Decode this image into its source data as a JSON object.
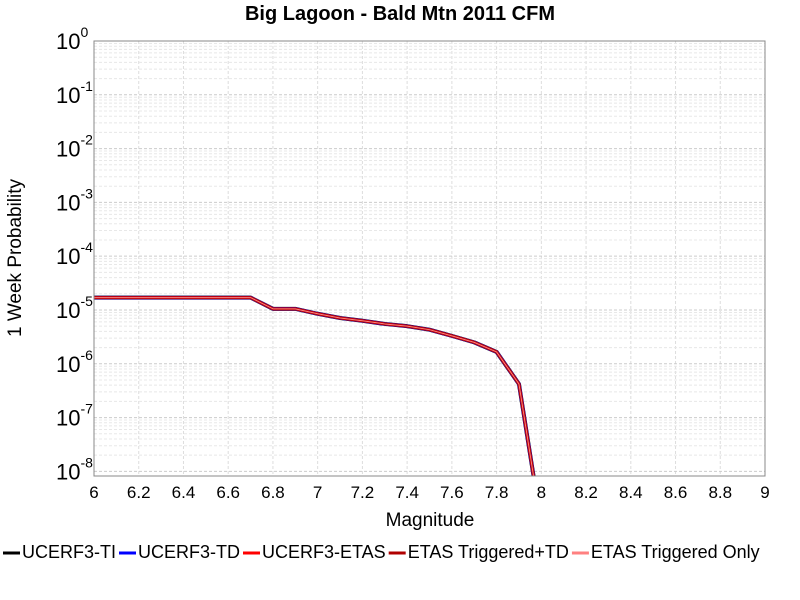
{
  "chart_data": {
    "type": "line",
    "title": "Big Lagoon - Bald Mtn 2011 CFM",
    "x_label": "Magnitude",
    "y_label": "1 Week Probability",
    "log_y": true,
    "grid": true,
    "legend": "bottom",
    "x": [
      6.0,
      6.1,
      6.2,
      6.3,
      6.4,
      6.5,
      6.6,
      6.7,
      6.8,
      6.9,
      7.0,
      7.1,
      7.2,
      7.3,
      7.4,
      7.5,
      7.6,
      7.7,
      7.8,
      7.9,
      8.0
    ],
    "series": [
      {
        "name": "UCERF3-TI",
        "color": "#000000",
        "values": [
          1.7e-05,
          1.7e-05,
          1.7e-05,
          1.7e-05,
          1.7e-05,
          1.7e-05,
          1.7e-05,
          1.7e-05,
          1.05e-05,
          1.05e-05,
          8.5e-06,
          7.1e-06,
          6.3e-06,
          5.5e-06,
          5e-06,
          4.3e-06,
          3.3e-06,
          2.5e-06,
          1.66e-06,
          4.2e-07,
          1e-09
        ]
      },
      {
        "name": "UCERF3-TD",
        "color": "#0000ff",
        "values": [
          1.7e-05,
          1.7e-05,
          1.7e-05,
          1.7e-05,
          1.7e-05,
          1.7e-05,
          1.7e-05,
          1.7e-05,
          1.05e-05,
          1.05e-05,
          8.5e-06,
          7.1e-06,
          6.3e-06,
          5.5e-06,
          5e-06,
          4.3e-06,
          3.3e-06,
          2.5e-06,
          1.66e-06,
          4.2e-07,
          1e-09
        ]
      },
      {
        "name": "UCERF3-ETAS",
        "color": "#ff0000",
        "values": [
          1.7e-05,
          1.7e-05,
          1.7e-05,
          1.7e-05,
          1.7e-05,
          1.7e-05,
          1.7e-05,
          1.7e-05,
          1.05e-05,
          1.05e-05,
          8.5e-06,
          7.1e-06,
          6.3e-06,
          5.5e-06,
          5e-06,
          4.3e-06,
          3.3e-06,
          2.5e-06,
          1.66e-06,
          4.2e-07,
          1e-09
        ]
      },
      {
        "name": "ETAS Triggered+TD",
        "color": "#b00000",
        "values": [
          1.7e-05,
          1.7e-05,
          1.7e-05,
          1.7e-05,
          1.7e-05,
          1.7e-05,
          1.7e-05,
          1.7e-05,
          1.05e-05,
          1.05e-05,
          8.5e-06,
          7.1e-06,
          6.3e-06,
          5.5e-06,
          5e-06,
          4.3e-06,
          3.3e-06,
          2.5e-06,
          1.66e-06,
          4.2e-07,
          1e-09
        ]
      },
      {
        "name": "ETAS Triggered Only",
        "color": "#ff8080",
        "values": [
          1.7e-05,
          1.7e-05,
          1.7e-05,
          1.7e-05,
          1.7e-05,
          1.7e-05,
          1.7e-05,
          1.7e-05,
          1.05e-05,
          1.05e-05,
          8.5e-06,
          7.1e-06,
          6.3e-06,
          5.5e-06,
          5e-06,
          4.3e-06,
          3.3e-06,
          2.5e-06,
          1.66e-06,
          4.2e-07,
          1e-09
        ]
      }
    ],
    "xlim": [
      6,
      9
    ],
    "xticks": [
      6,
      6.2,
      6.4,
      6.6,
      6.8,
      7,
      7.2,
      7.4,
      7.6,
      7.8,
      8,
      8.2,
      8.4,
      8.6,
      8.8,
      9
    ],
    "ylim": [
      8.2e-09,
      1
    ],
    "yticks": [
      {
        "value": 1,
        "label": "10",
        "exponent": "0"
      },
      {
        "value": 0.1,
        "label": "10",
        "exponent": "-1"
      },
      {
        "value": 0.01,
        "label": "10",
        "exponent": "-2"
      },
      {
        "value": 0.001,
        "label": "10",
        "exponent": "-3"
      },
      {
        "value": 0.0001,
        "label": "10",
        "exponent": "-4"
      },
      {
        "value": 1e-05,
        "label": "10",
        "exponent": "-5"
      },
      {
        "value": 1e-06,
        "label": "10",
        "exponent": "-6"
      },
      {
        "value": 1e-07,
        "label": "10",
        "exponent": "-7"
      },
      {
        "value": 1e-08,
        "label": "10",
        "exponent": "-8"
      }
    ]
  }
}
